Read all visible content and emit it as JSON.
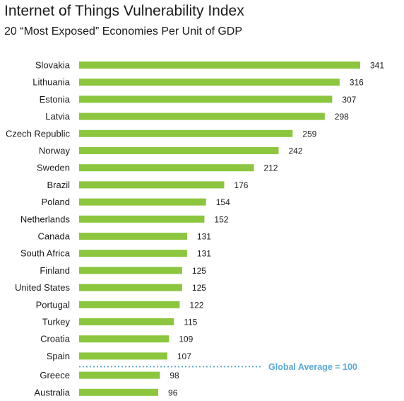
{
  "chart_data": {
    "type": "bar",
    "orientation": "horizontal",
    "title": "Internet of Things Vulnerability Index",
    "subtitle": "20 “Most Exposed” Economies Per Unit of GDP",
    "categories": [
      "Slovakia",
      "Lithuania",
      "Estonia",
      "Latvia",
      "Czech Republic",
      "Norway",
      "Sweden",
      "Brazil",
      "Poland",
      "Netherlands",
      "Canada",
      "South Africa",
      "Finland",
      "United States",
      "Portugal",
      "Turkey",
      "Croatia",
      "Spain",
      "Greece",
      "Australia"
    ],
    "values": [
      341,
      316,
      307,
      298,
      259,
      242,
      212,
      176,
      154,
      152,
      131,
      131,
      125,
      125,
      122,
      115,
      109,
      107,
      98,
      96
    ],
    "reference_line": {
      "value": 100,
      "label": "Global Average = 100",
      "style": "dotted"
    },
    "colors": {
      "bar": "#8cc63f",
      "reference": "#5aa9d6",
      "text": "#1a1a1a"
    },
    "grid": false,
    "legend": "none"
  }
}
